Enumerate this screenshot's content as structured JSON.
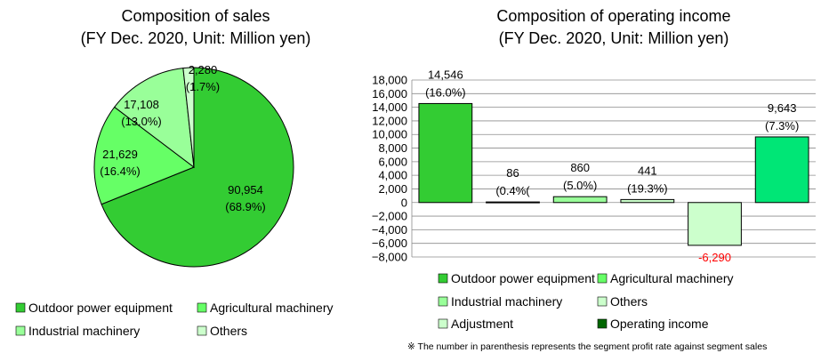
{
  "chart_data": [
    {
      "type": "pie",
      "title": "Composition of sales",
      "subtitle": "(FY Dec. 2020, Unit: Million yen)",
      "slices": [
        {
          "name": "Outdoor power equipment",
          "value": 90954,
          "value_label": "90,954",
          "pct_label": "(68.9%)",
          "color": "#33cc33"
        },
        {
          "name": "Agricultural machinery",
          "value": 21629,
          "value_label": "21,629",
          "pct_label": "(16.4%)",
          "color": "#66ff66"
        },
        {
          "name": "Industrial machinery",
          "value": 17108,
          "value_label": "17,108",
          "pct_label": "(13.0%)",
          "color": "#99ff99"
        },
        {
          "name": "Others",
          "value": 2280,
          "value_label": "2,280",
          "pct_label": "(1.7%)",
          "color": "#ccffcc"
        }
      ],
      "legend": [
        "Outdoor power equipment",
        "Agricultural machinery",
        "Industrial machinery",
        "Others"
      ],
      "legend_position": "bottom"
    },
    {
      "type": "bar",
      "title": "Composition of operating income",
      "subtitle": "(FY Dec. 2020, Unit: Million yen)",
      "categories": [
        "Outdoor power equipment",
        "Agricultural machinery",
        "Industrial machinery",
        "Others",
        "Adjustment",
        "Operating income"
      ],
      "values": [
        14546,
        86,
        860,
        441,
        -6290,
        9643
      ],
      "value_labels": [
        "14,546",
        "86",
        "860",
        "441",
        "-6,290",
        "9,643"
      ],
      "rate_labels": [
        "(16.0%)",
        "(0.4%(",
        "(5.0%)",
        "(19.3%)",
        "",
        "(7.3%)"
      ],
      "colors": [
        "#33cc33",
        "#66ff66",
        "#99ff99",
        "#ccffcc",
        "#ccffcc",
        "#00e676"
      ],
      "legend_colors": [
        "#33cc33",
        "#66ff66",
        "#99ff99",
        "#ccffcc",
        "#ccffcc",
        "#006600"
      ],
      "negative_label_color": "#ff0000",
      "ylim": [
        -8000,
        18000
      ],
      "yticks": [
        18000,
        16000,
        14000,
        12000,
        10000,
        8000,
        6000,
        4000,
        2000,
        0,
        -2000,
        -4000,
        -6000,
        -8000
      ],
      "ytick_labels": [
        "18,000",
        "16,000",
        "14,000",
        "12,000",
        "10,000",
        "8,000",
        "6,000",
        "4,000",
        "2,000",
        "0",
        "−2,000",
        "−4,000",
        "−6,000",
        "−8,000"
      ],
      "grid": true,
      "legend": [
        "Outdoor power equipment",
        "Agricultural machinery",
        "Industrial machinery",
        "Others",
        "Adjustment",
        "Operating income"
      ],
      "legend_position": "bottom",
      "note": "※ The number in parenthesis represents the segment profit rate against segment sales"
    }
  ]
}
